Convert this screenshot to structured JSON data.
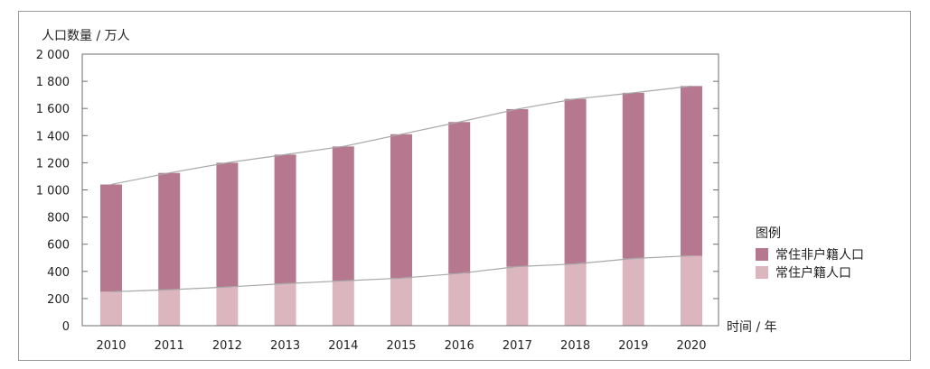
{
  "chart_data": {
    "type": "bar",
    "stacked": true,
    "title": "",
    "ylabel": "人口数量 / 万人",
    "xlabel": "时间 / 年",
    "categories": [
      "2010",
      "2011",
      "2012",
      "2013",
      "2014",
      "2015",
      "2016",
      "2017",
      "2018",
      "2019",
      "2020"
    ],
    "ylim": [
      0,
      2000
    ],
    "yticks": [
      0,
      200,
      400,
      600,
      800,
      1000,
      1200,
      1400,
      1600,
      1800,
      2000
    ],
    "ytick_labels": [
      "0",
      "200",
      "400",
      "600",
      "800",
      "1 000",
      "1 200",
      "1 400",
      "1 600",
      "1 800",
      "2 000"
    ],
    "series": [
      {
        "name": "常住户籍人口",
        "color": "#dbb6bf",
        "values": [
          250,
          265,
          285,
          310,
          330,
          350,
          385,
          435,
          455,
          495,
          515
        ]
      },
      {
        "name": "常住非户籍人口",
        "color": "#b5788f",
        "values": [
          790,
          860,
          915,
          950,
          990,
          1060,
          1115,
          1160,
          1215,
          1220,
          1250
        ]
      }
    ],
    "totals": [
      1040,
      1125,
      1200,
      1260,
      1320,
      1410,
      1500,
      1595,
      1670,
      1715,
      1765
    ],
    "trend_line_color": "#a8a8a8",
    "legend": {
      "title": "图例",
      "position": "right",
      "order": [
        "常住非户籍人口",
        "常住户籍人口"
      ]
    }
  }
}
